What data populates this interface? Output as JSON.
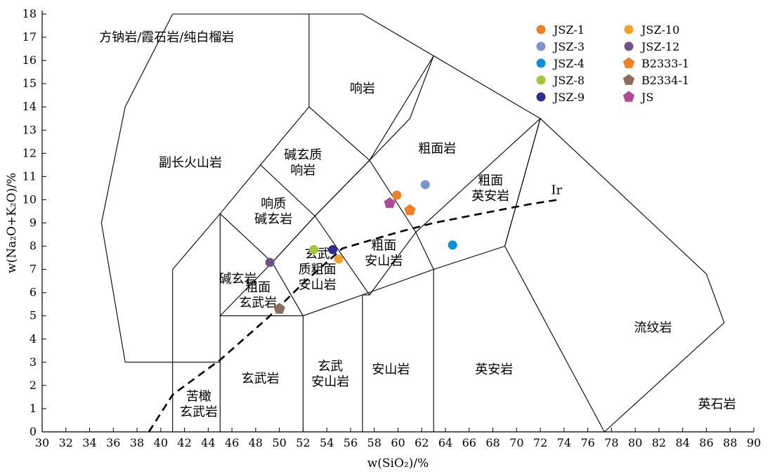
{
  "chart_data": {
    "type": "scatter",
    "title": "",
    "xlabel": "w(SiO₂)/%",
    "ylabel": "w(Na₂O+K₂O)/%",
    "xlim": [
      30,
      90
    ],
    "ylim": [
      0,
      18
    ],
    "x_ticks": [
      30,
      32,
      34,
      36,
      38,
      40,
      42,
      44,
      46,
      48,
      50,
      52,
      54,
      56,
      58,
      60,
      62,
      64,
      66,
      68,
      70,
      72,
      74,
      76,
      78,
      80,
      82,
      84,
      86,
      88,
      90
    ],
    "y_ticks": [
      0,
      1,
      2,
      3,
      4,
      5,
      6,
      7,
      8,
      9,
      10,
      11,
      12,
      13,
      14,
      15,
      16,
      17,
      18
    ],
    "grid": false,
    "legend_position": "top-right",
    "field_boundaries": [
      [
        [
          37,
          3
        ],
        [
          35,
          9
        ],
        [
          37,
          14
        ],
        [
          41,
          18
        ],
        [
          52.5,
          18
        ],
        [
          57,
          18
        ],
        [
          63,
          16.2
        ],
        [
          72,
          13.5
        ],
        [
          86,
          6.8
        ],
        [
          87.5,
          4.7
        ],
        [
          77.4,
          0
        ]
      ],
      [
        [
          37,
          3
        ],
        [
          45,
          3
        ]
      ],
      [
        [
          41,
          0
        ],
        [
          41,
          7
        ],
        [
          45,
          9.4
        ],
        [
          48.4,
          11.5
        ],
        [
          52.5,
          14
        ],
        [
          57.6,
          11.7
        ],
        [
          63,
          16.2
        ]
      ],
      [
        [
          52.5,
          18
        ],
        [
          52.5,
          14
        ]
      ],
      [
        [
          57.6,
          11.7
        ],
        [
          61,
          13.5
        ],
        [
          63,
          16.2
        ]
      ],
      [
        [
          45,
          0
        ],
        [
          45,
          5
        ],
        [
          52,
          5
        ],
        [
          52,
          0
        ]
      ],
      [
        [
          45,
          9.4
        ],
        [
          45,
          5
        ]
      ],
      [
        [
          45,
          5
        ],
        [
          49.4,
          7.3
        ],
        [
          52,
          5
        ]
      ],
      [
        [
          45,
          9.4
        ],
        [
          49.4,
          7.3
        ],
        [
          53,
          9.3
        ],
        [
          48.4,
          11.5
        ]
      ],
      [
        [
          53,
          9.3
        ],
        [
          57.6,
          11.7
        ]
      ],
      [
        [
          49.4,
          7.3
        ],
        [
          53,
          9.3
        ],
        [
          57.6,
          5.9
        ],
        [
          57,
          5.9
        ],
        [
          57,
          0
        ]
      ],
      [
        [
          52,
          5
        ],
        [
          57,
          5.9
        ],
        [
          63,
          7
        ],
        [
          69,
          8
        ],
        [
          72,
          13.5
        ]
      ],
      [
        [
          53,
          9.3
        ],
        [
          57.6,
          11.7
        ],
        [
          61.5,
          8.6
        ],
        [
          57.6,
          5.9
        ]
      ],
      [
        [
          61.5,
          8.6
        ],
        [
          63,
          7
        ],
        [
          63,
          0
        ]
      ],
      [
        [
          61.5,
          8.6
        ],
        [
          72,
          13.5
        ],
        [
          69,
          8
        ],
        [
          77.4,
          0
        ]
      ]
    ],
    "ir_line": {
      "label": "Ir",
      "points": [
        [
          39,
          0
        ],
        [
          41,
          1.6
        ],
        [
          45,
          3.1
        ],
        [
          49,
          4.9
        ],
        [
          52,
          6.4
        ],
        [
          55.3,
          7.9
        ],
        [
          60,
          8.6
        ],
        [
          63,
          9
        ],
        [
          67,
          9.4
        ],
        [
          71,
          9.8
        ],
        [
          73.5,
          10
        ]
      ]
    },
    "field_labels": [
      {
        "lines": [
          "方钠岩/霞石岩/纯白榴岩"
        ],
        "x": 40.5,
        "y": 17.0
      },
      {
        "lines": [
          "响岩"
        ],
        "x": 57,
        "y": 14.8
      },
      {
        "lines": [
          "副长火山岩"
        ],
        "x": 42.5,
        "y": 11.6
      },
      {
        "lines": [
          "碱玄质",
          "响岩"
        ],
        "x": 52,
        "y": 11.6
      },
      {
        "lines": [
          "粗面岩"
        ],
        "x": 63.3,
        "y": 12.2
      },
      {
        "lines": [
          "响质",
          "碱玄岩"
        ],
        "x": 49.5,
        "y": 9.5
      },
      {
        "lines": [
          "粗面",
          "英安岩"
        ],
        "x": 67.8,
        "y": 10.5
      },
      {
        "lines": [
          "碱玄岩"
        ],
        "x": 46.5,
        "y": 6.6
      },
      {
        "lines": [
          "玄武",
          "质粗面",
          "安山岩"
        ],
        "x": 53.2,
        "y": 7.0
      },
      {
        "lines": [
          "粗面",
          "玄武岩"
        ],
        "x": 48.2,
        "y": 5.9
      },
      {
        "lines": [
          "粗面",
          "安山岩"
        ],
        "x": 58.8,
        "y": 7.7
      },
      {
        "lines": [
          "流纹岩"
        ],
        "x": 81.5,
        "y": 4.5
      },
      {
        "lines": [
          "英安岩"
        ],
        "x": 68.1,
        "y": 2.7
      },
      {
        "lines": [
          "玄武岩"
        ],
        "x": 48.4,
        "y": 2.3
      },
      {
        "lines": [
          "玄武",
          "安山岩"
        ],
        "x": 54.3,
        "y": 2.5
      },
      {
        "lines": [
          "安山岩"
        ],
        "x": 59.4,
        "y": 2.7
      },
      {
        "lines": [
          "苦橄",
          "玄武岩"
        ],
        "x": 43.2,
        "y": 1.2
      },
      {
        "lines": [
          "英石岩"
        ],
        "x": 86.9,
        "y": 1.2
      }
    ],
    "series": [
      {
        "name": "JSZ-1",
        "marker": "circle",
        "color": "#f07f2a",
        "points": [
          [
            59.9,
            10.2
          ]
        ]
      },
      {
        "name": "JSZ-3",
        "marker": "circle",
        "color": "#7b94cd",
        "points": [
          [
            62.3,
            10.65
          ]
        ]
      },
      {
        "name": "JSZ-4",
        "marker": "circle",
        "color": "#0f8fd8",
        "points": [
          [
            64.6,
            8.05
          ]
        ]
      },
      {
        "name": "JSZ-8",
        "marker": "circle",
        "color": "#a3c73a",
        "points": [
          [
            52.9,
            7.85
          ]
        ]
      },
      {
        "name": "JSZ-9",
        "marker": "circle",
        "color": "#2b2f8f",
        "points": [
          [
            54.5,
            7.85
          ]
        ]
      },
      {
        "name": "JSZ-10",
        "marker": "circle",
        "color": "#f5a02a",
        "points": [
          [
            55.0,
            7.45
          ]
        ]
      },
      {
        "name": "JSZ-12",
        "marker": "circle",
        "color": "#6e4f87",
        "points": [
          [
            49.2,
            7.3
          ]
        ]
      },
      {
        "name": "B2333-1",
        "marker": "pentagon",
        "color": "#f07f2a",
        "points": [
          [
            61.0,
            9.55
          ]
        ]
      },
      {
        "name": "B2334-1",
        "marker": "pentagon",
        "color": "#8b6d60",
        "points": [
          [
            50.0,
            5.3
          ]
        ]
      },
      {
        "name": "JS",
        "marker": "pentagon",
        "color": "#b04a93",
        "points": [
          [
            59.3,
            9.85
          ]
        ]
      }
    ]
  }
}
